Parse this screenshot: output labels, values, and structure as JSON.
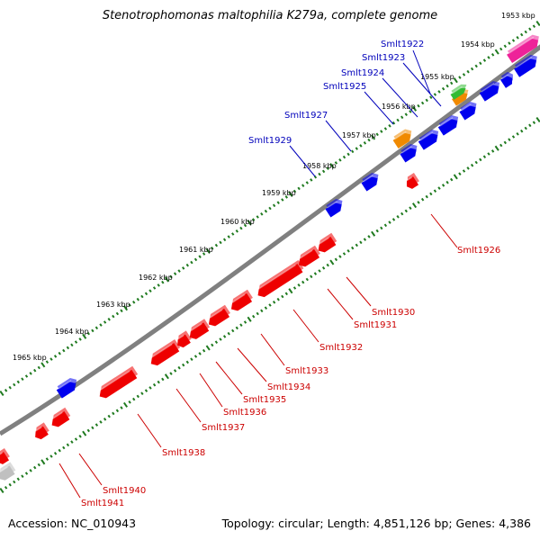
{
  "title": "Stenotrophomonas maltophilia K279a, complete genome",
  "accession_text": "Accession: NC_010943",
  "summary_text": "Topology: circular; Length: 4,851,126 bp; Genes: 4,386",
  "colors": {
    "forward_gene": "#0000ee",
    "reverse_gene": "#ee0000",
    "forward_label": "#0000bb",
    "reverse_label": "#cc0000",
    "tick": "#1f7a1f",
    "backbone": "#808080",
    "rna_orange": "#f08a00",
    "rna_green": "#33bb33",
    "highlight_pink": "#ee2299"
  },
  "kbp_labels": [
    "1953 kbp",
    "1954 kbp",
    "1955 kbp",
    "1956 kbp",
    "1957 kbp",
    "1958 kbp",
    "1959 kbp",
    "1960 kbp",
    "1961 kbp",
    "1962 kbp",
    "1963 kbp",
    "1964 kbp",
    "1965 kbp"
  ],
  "forward_genes": [
    "Smlt1922",
    "Smlt1923",
    "Smlt1924",
    "Smlt1925",
    "Smlt1927",
    "Smlt1929"
  ],
  "reverse_genes": [
    "Smlt1926",
    "Smlt1930",
    "Smlt1931",
    "Smlt1932",
    "Smlt1933",
    "Smlt1934",
    "Smlt1935",
    "Smlt1936",
    "Smlt1937",
    "Smlt1938",
    "Smlt1940",
    "Smlt1941"
  ]
}
